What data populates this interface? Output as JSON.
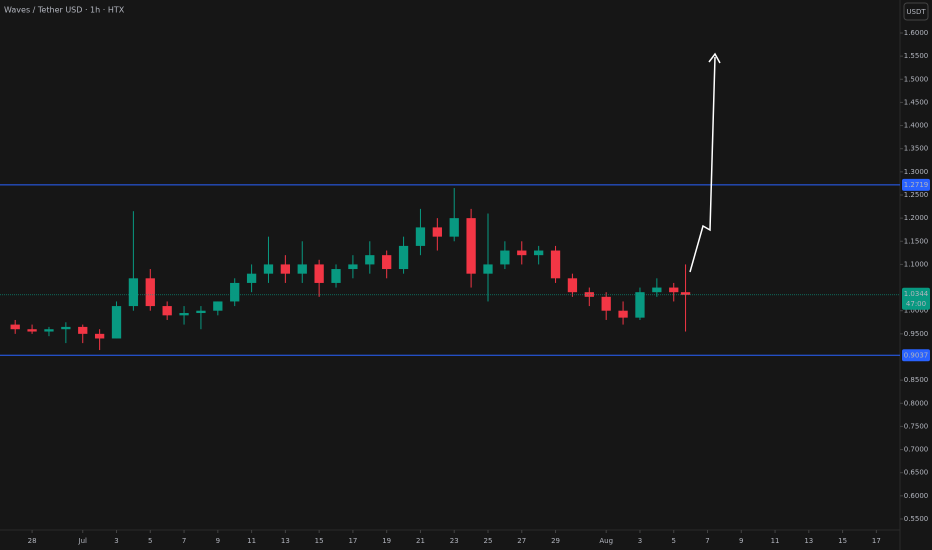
{
  "header": {
    "title": "Waves / Tether USD · 1h · HTX",
    "currency": "USDT"
  },
  "chart_data": {
    "type": "candlestick",
    "up_color": "#089981",
    "down_color": "#f23645",
    "x": [
      -1,
      0,
      1,
      2,
      3,
      4,
      5,
      6,
      7,
      8,
      9,
      10,
      11,
      12,
      13,
      14,
      15,
      16,
      17,
      18,
      19,
      20,
      21,
      22,
      23,
      24,
      25,
      26,
      27,
      28,
      29,
      30,
      31,
      32,
      33,
      34,
      35,
      36,
      37,
      38,
      38.7
    ],
    "open": [
      0.97,
      0.96,
      0.955,
      0.96,
      0.965,
      0.95,
      0.94,
      1.01,
      1.07,
      1.01,
      0.99,
      0.995,
      1.0,
      1.02,
      1.06,
      1.08,
      1.1,
      1.08,
      1.1,
      1.06,
      1.09,
      1.1,
      1.12,
      1.09,
      1.14,
      1.18,
      1.16,
      1.2,
      1.08,
      1.1,
      1.13,
      1.12,
      1.13,
      1.07,
      1.04,
      1.03,
      1.0,
      0.985,
      1.04,
      1.05,
      1.04
    ],
    "high": [
      0.98,
      0.97,
      0.965,
      0.975,
      0.97,
      0.96,
      1.02,
      1.215,
      1.09,
      1.02,
      1.01,
      1.01,
      1.02,
      1.07,
      1.1,
      1.16,
      1.12,
      1.15,
      1.11,
      1.1,
      1.12,
      1.15,
      1.13,
      1.16,
      1.22,
      1.2,
      1.265,
      1.22,
      1.21,
      1.15,
      1.15,
      1.14,
      1.14,
      1.08,
      1.05,
      1.04,
      1.02,
      1.05,
      1.07,
      1.06,
      1.1
    ],
    "low": [
      0.95,
      0.95,
      0.945,
      0.93,
      0.93,
      0.915,
      0.94,
      1.0,
      1.0,
      0.98,
      0.97,
      0.96,
      0.99,
      1.01,
      1.04,
      1.06,
      1.06,
      1.06,
      1.03,
      1.05,
      1.07,
      1.08,
      1.07,
      1.08,
      1.12,
      1.13,
      1.15,
      1.05,
      1.02,
      1.09,
      1.1,
      1.1,
      1.06,
      1.03,
      1.01,
      0.98,
      0.97,
      0.98,
      1.03,
      1.02,
      0.955
    ],
    "close": [
      0.96,
      0.955,
      0.96,
      0.965,
      0.95,
      0.94,
      1.01,
      1.07,
      1.01,
      0.99,
      0.995,
      1.0,
      1.02,
      1.06,
      1.08,
      1.1,
      1.08,
      1.1,
      1.06,
      1.09,
      1.1,
      1.12,
      1.09,
      1.14,
      1.18,
      1.16,
      1.2,
      1.08,
      1.1,
      1.13,
      1.12,
      1.13,
      1.07,
      1.04,
      1.03,
      1.0,
      0.985,
      1.04,
      1.05,
      1.04,
      1.0344
    ],
    "xlim": [
      -1.9,
      51.4
    ],
    "xticks": [
      {
        "value": 0,
        "label": "28"
      },
      {
        "value": 3,
        "label": "Jul"
      },
      {
        "value": 5,
        "label": "3"
      },
      {
        "value": 7,
        "label": "5"
      },
      {
        "value": 9,
        "label": "7"
      },
      {
        "value": 11,
        "label": "9"
      },
      {
        "value": 13,
        "label": "11"
      },
      {
        "value": 15,
        "label": "13"
      },
      {
        "value": 17,
        "label": "15"
      },
      {
        "value": 19,
        "label": "17"
      },
      {
        "value": 21,
        "label": "19"
      },
      {
        "value": 23,
        "label": "21"
      },
      {
        "value": 25,
        "label": "23"
      },
      {
        "value": 27,
        "label": "25"
      },
      {
        "value": 29,
        "label": "27"
      },
      {
        "value": 31,
        "label": "29"
      },
      {
        "value": 34,
        "label": "Aug"
      },
      {
        "value": 36,
        "label": "3"
      },
      {
        "value": 38,
        "label": "5"
      },
      {
        "value": 40,
        "label": "7"
      },
      {
        "value": 42,
        "label": "9"
      },
      {
        "value": 44,
        "label": "11"
      },
      {
        "value": 46,
        "label": "13"
      },
      {
        "value": 48,
        "label": "15"
      },
      {
        "value": 50,
        "label": "17"
      }
    ],
    "ylim": [
      0.5262,
      1.6713
    ],
    "yticks": [
      {
        "value": 0.55,
        "label": "0.5500"
      },
      {
        "value": 0.6,
        "label": "0.6000"
      },
      {
        "value": 0.65,
        "label": "0.6500"
      },
      {
        "value": 0.7,
        "label": "0.7000"
      },
      {
        "value": 0.75,
        "label": "0.7500"
      },
      {
        "value": 0.8,
        "label": "0.8000"
      },
      {
        "value": 0.85,
        "label": "0.8500"
      },
      {
        "value": 0.95,
        "label": "0.9500"
      },
      {
        "value": 1.0,
        "label": "1.0000"
      },
      {
        "value": 1.1,
        "label": "1.1000"
      },
      {
        "value": 1.15,
        "label": "1.1500"
      },
      {
        "value": 1.2,
        "label": "1.2000"
      },
      {
        "value": 1.25,
        "label": "1.2500"
      },
      {
        "value": 1.3,
        "label": "1.3000"
      },
      {
        "value": 1.35,
        "label": "1.3500"
      },
      {
        "value": 1.4,
        "label": "1.4000"
      },
      {
        "value": 1.45,
        "label": "1.4500"
      },
      {
        "value": 1.5,
        "label": "1.5000"
      },
      {
        "value": 1.55,
        "label": "1.5500"
      },
      {
        "value": 1.6,
        "label": "1.6000"
      }
    ],
    "levels": [
      {
        "value": 1.2719,
        "color": "#2962ff"
      },
      {
        "value": 0.9037,
        "color": "#2962ff"
      }
    ],
    "last_price": {
      "value": 1.0344,
      "countdown": "47:00",
      "color": "#089981"
    }
  }
}
